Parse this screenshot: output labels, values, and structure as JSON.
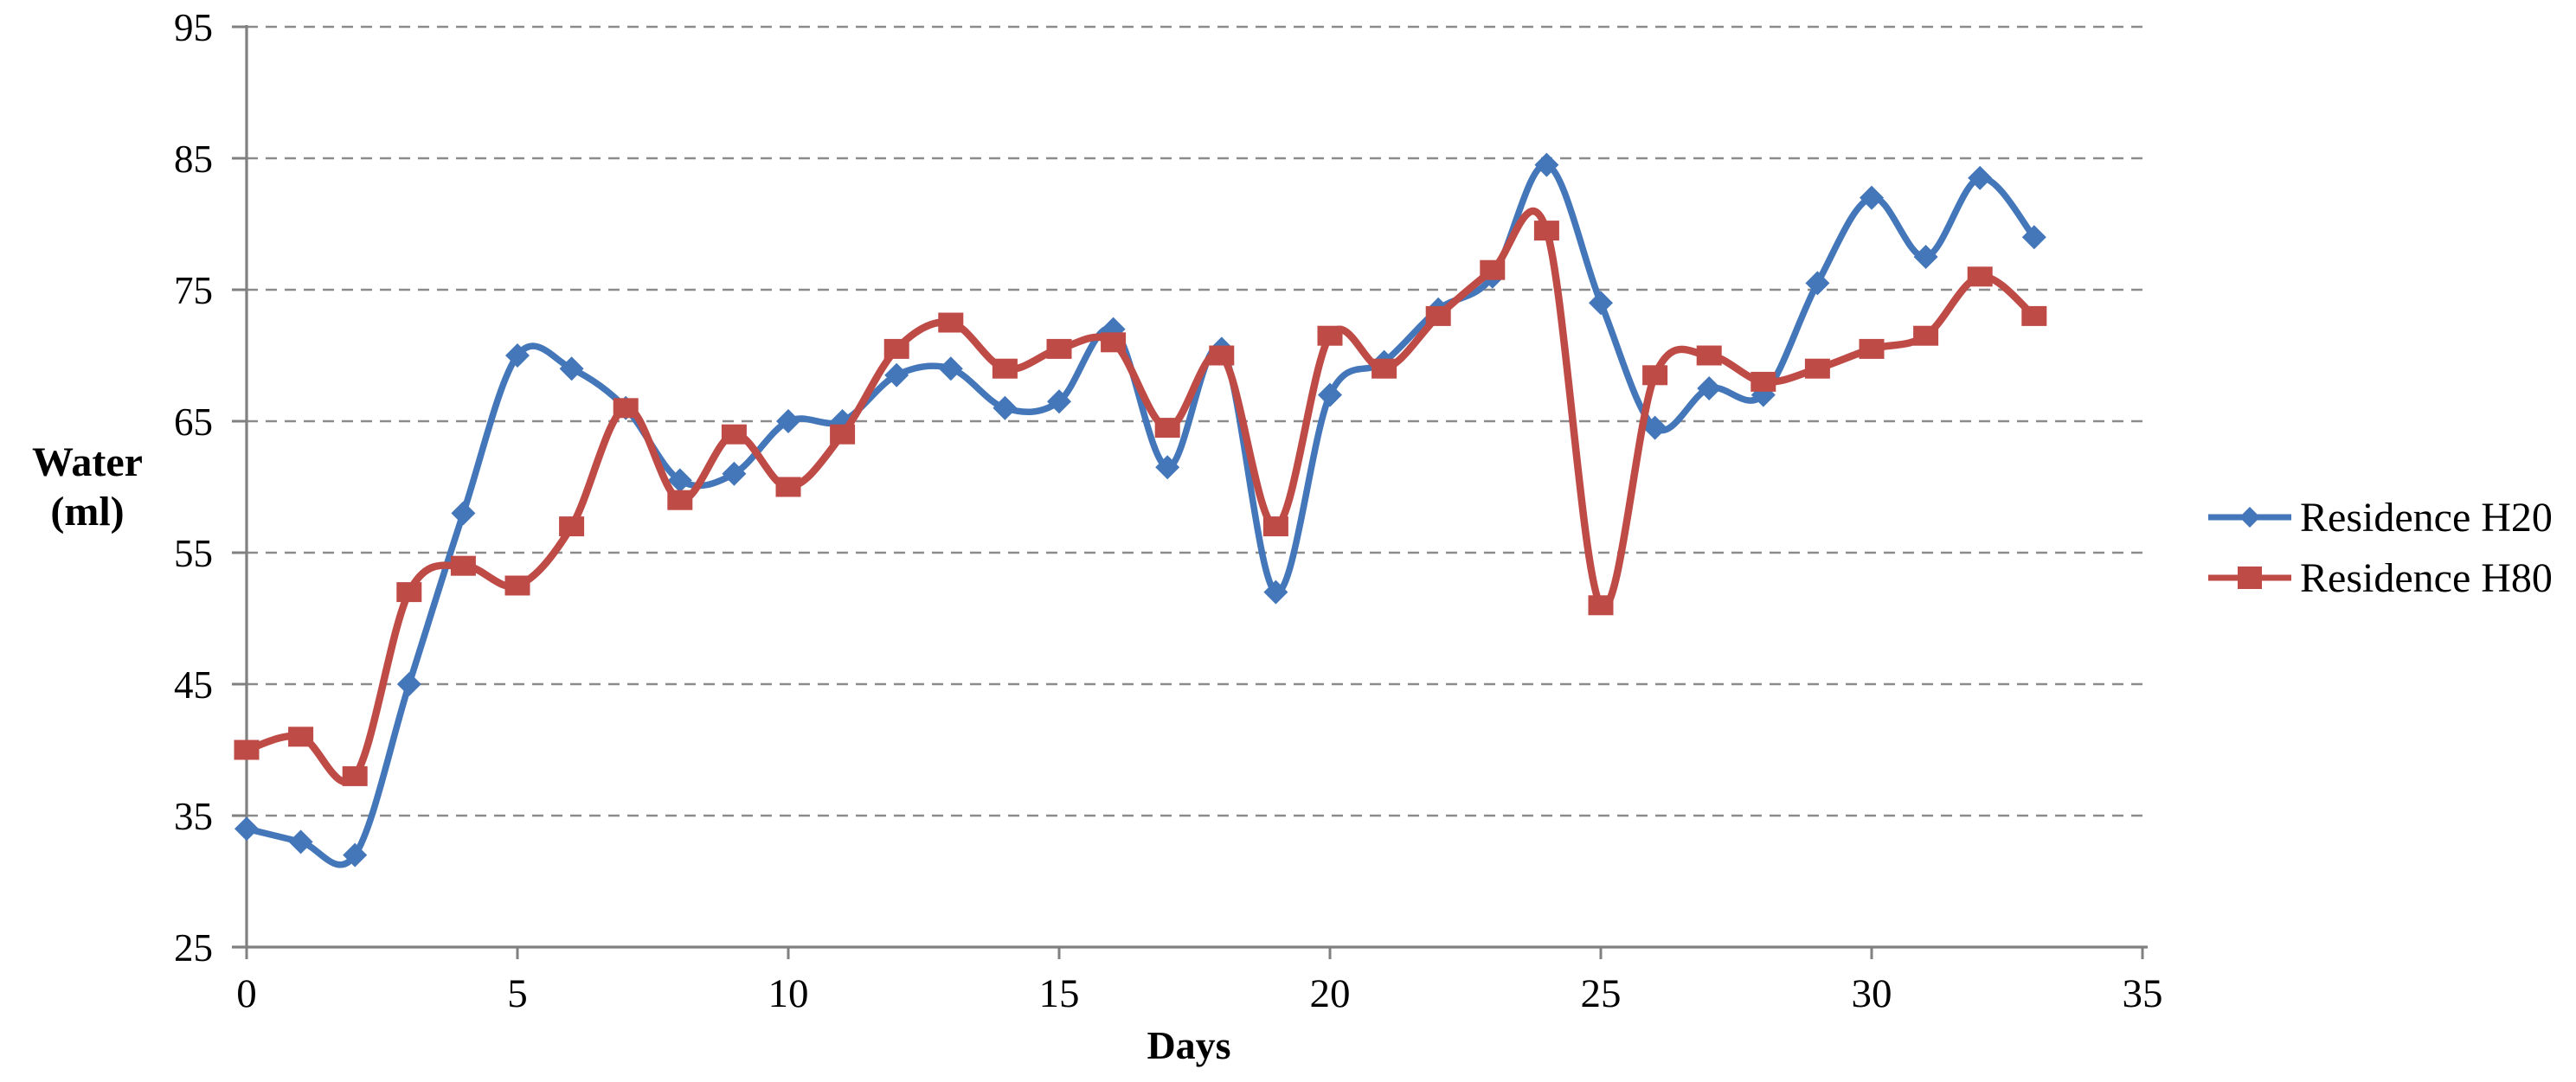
{
  "chart_data": {
    "type": "line",
    "title": "",
    "xlabel": "Days",
    "ylabel": "Water (ml)",
    "ylabel_lines": [
      "Water",
      "(ml)"
    ],
    "xlim": [
      0,
      35
    ],
    "ylim": [
      25,
      95
    ],
    "x_ticks": [
      0,
      5,
      10,
      15,
      20,
      25,
      30,
      35
    ],
    "y_ticks": [
      25,
      35,
      45,
      55,
      65,
      75,
      85,
      95
    ],
    "grid": "horizontal dashed gridlines at every 10 ml",
    "legend_position": "right",
    "smooth_lines": true,
    "x": [
      0,
      1,
      2,
      3,
      4,
      5,
      6,
      7,
      8,
      9,
      10,
      11,
      12,
      13,
      14,
      15,
      16,
      17,
      18,
      19,
      20,
      21,
      22,
      23,
      24,
      25,
      26,
      27,
      28,
      29,
      30,
      31,
      32,
      33
    ],
    "series": [
      {
        "name": "Residence H20",
        "color": "#4476BA",
        "marker": "diamond",
        "values": [
          34,
          33,
          32,
          45,
          58,
          70,
          69,
          66,
          60.5,
          61,
          65,
          65,
          68.5,
          69,
          66,
          66.5,
          72,
          61.5,
          70.5,
          52,
          67,
          69.5,
          73.5,
          76,
          84.5,
          74,
          64.5,
          67.5,
          67,
          75.5,
          82,
          77.5,
          83.5,
          79
        ]
      },
      {
        "name": "Residence H80",
        "color": "#BF4B47",
        "marker": "square",
        "values": [
          40,
          41,
          38,
          52,
          54,
          52.5,
          57,
          66,
          59,
          64,
          60,
          64,
          70.5,
          72.5,
          69,
          70.5,
          71,
          64.5,
          70,
          57,
          71.5,
          69,
          73,
          76.5,
          79.5,
          51,
          68.5,
          70,
          68,
          69,
          70.5,
          71.5,
          76,
          73
        ]
      }
    ],
    "colors": {
      "axis": "#808080",
      "gridline": "#8c8c8c",
      "text": "#000000",
      "background": "#ffffff"
    }
  }
}
